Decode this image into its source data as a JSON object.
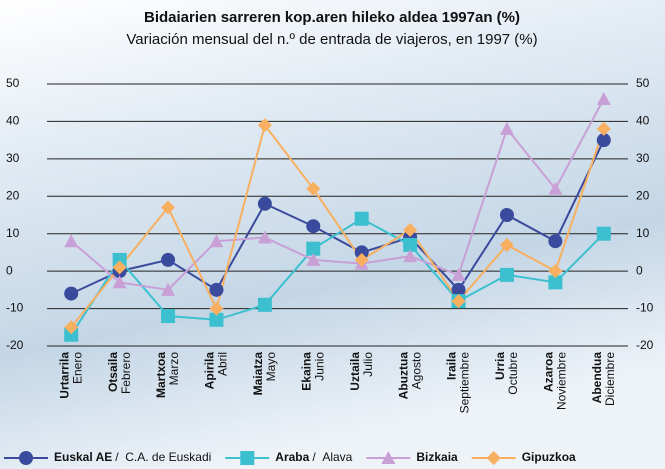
{
  "chart_data": {
    "type": "line",
    "title": "Bidaiarien sarreren kop.aren hileko aldea 1997an (%)",
    "subtitle": "Variación mensual del n.º de entrada de viajeros, en 1997 (%)",
    "categories": [
      [
        "Urtarrila",
        "Enero"
      ],
      [
        "Otsaila",
        "Febrero"
      ],
      [
        "Martxoa",
        "Marzo"
      ],
      [
        "Apirila",
        "Abril"
      ],
      [
        "Maiatza",
        "Mayo"
      ],
      [
        "Ekaina",
        "Junio"
      ],
      [
        "Uztaila",
        "Julio"
      ],
      [
        "Abuztua",
        "Agosto"
      ],
      [
        "Iraila",
        "Septiembre"
      ],
      [
        "Urria",
        "Octubre"
      ],
      [
        "Azaroa",
        "Noviembre"
      ],
      [
        "Abendua",
        "Diciembre"
      ]
    ],
    "series": [
      {
        "name": "Euskal AE",
        "name_es": "C.A. de Euskadi",
        "color": "#3a4a9c",
        "marker": "circle",
        "values": [
          -6,
          0,
          3,
          -5,
          18,
          12,
          5,
          9,
          -5,
          15,
          8,
          35
        ]
      },
      {
        "name": "Araba",
        "name_es": "Alava",
        "color": "#3cc0d0",
        "marker": "square",
        "values": [
          -17,
          3,
          -12,
          -13,
          -9,
          6,
          14,
          7,
          -8,
          -1,
          -3,
          10
        ]
      },
      {
        "name": "Bizkaia",
        "color": "#c8a0d6",
        "marker": "triangle",
        "values": [
          8,
          -3,
          -5,
          8,
          9,
          3,
          2,
          4,
          -1,
          38,
          22,
          46
        ]
      },
      {
        "name": "Gipuzkoa",
        "color": "#f8b060",
        "marker": "diamond",
        "values": [
          -15,
          1,
          17,
          -10,
          39,
          22,
          3,
          11,
          -8,
          7,
          0,
          38
        ]
      }
    ],
    "ylim": [
      -20,
      50
    ],
    "yticks": [
      -20,
      -10,
      0,
      10,
      20,
      30,
      40,
      50
    ],
    "grid": true
  }
}
